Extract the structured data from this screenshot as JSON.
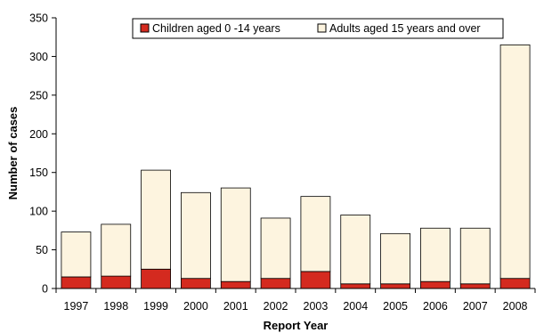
{
  "chart_data": {
    "type": "bar",
    "stacked": true,
    "categories": [
      "1997",
      "1998",
      "1999",
      "2000",
      "2001",
      "2002",
      "2003",
      "2004",
      "2005",
      "2006",
      "2007",
      "2008"
    ],
    "series": [
      {
        "name": "Children aged 0 -14 years",
        "color": "#d42a1f",
        "values": [
          15,
          16,
          25,
          13,
          9,
          13,
          22,
          6,
          6,
          9,
          6,
          13
        ]
      },
      {
        "name": "Adults aged 15 years and over",
        "color": "#fdf4df",
        "values": [
          58,
          67,
          128,
          111,
          121,
          78,
          97,
          89,
          65,
          69,
          72,
          302
        ]
      }
    ],
    "title": "",
    "xlabel": "Report Year",
    "ylabel": "Number of cases",
    "ylim": [
      0,
      350
    ],
    "yticks": [
      0,
      50,
      100,
      150,
      200,
      250,
      300,
      350
    ],
    "grid": false,
    "legend_position": "top-center",
    "bar_outline_color": "#000000"
  }
}
